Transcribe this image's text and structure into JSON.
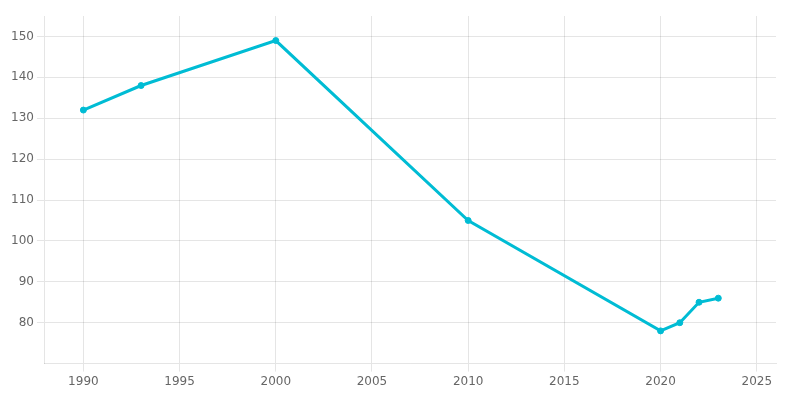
{
  "chart_data": {
    "type": "line",
    "x": [
      1990,
      1993,
      2000,
      2010,
      2020,
      2021,
      2022,
      2023
    ],
    "values": [
      132,
      138,
      149,
      105,
      78,
      80,
      85,
      86
    ],
    "color": "#00BCD4",
    "marker": "o",
    "xlim": [
      1988,
      2026
    ],
    "ylim": [
      70,
      155
    ],
    "xticks": [
      1990,
      1995,
      2000,
      2005,
      2010,
      2015,
      2020,
      2025
    ],
    "yticks": [
      80,
      90,
      100,
      110,
      120,
      130,
      140,
      150
    ],
    "grid": true
  }
}
